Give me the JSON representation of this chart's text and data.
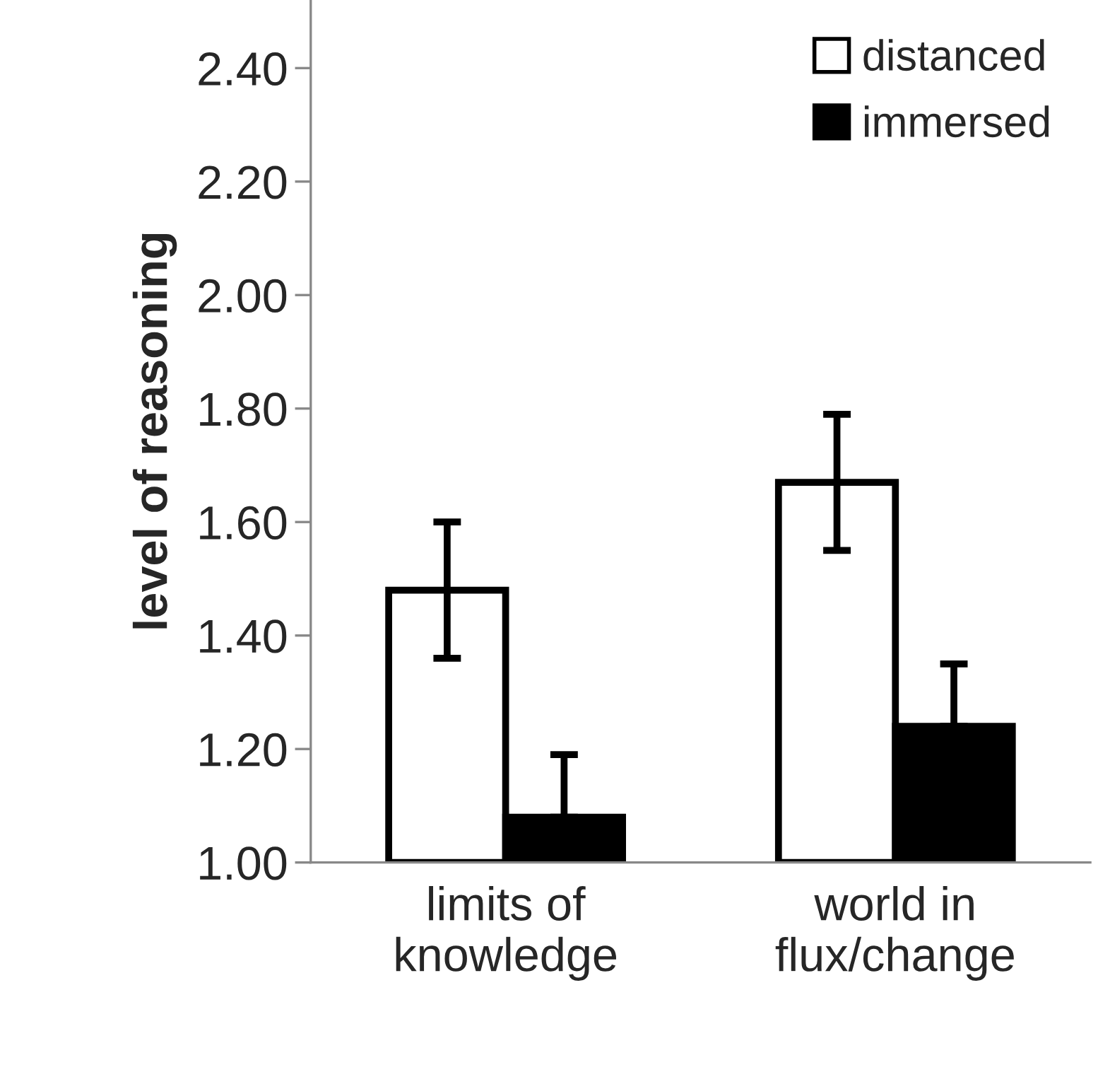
{
  "chart_data": {
    "type": "bar",
    "ylabel": "level of reasoning",
    "categories": [
      "limits of\nknowledge",
      "world in\nflux/change"
    ],
    "series": [
      {
        "name": "distanced",
        "color": "#ffffff",
        "values": [
          1.48,
          1.67
        ],
        "errors": [
          0.12,
          0.12
        ]
      },
      {
        "name": "immersed",
        "color": "#000000",
        "values": [
          1.08,
          1.24
        ],
        "errors": [
          [
            1.08,
            1.19
          ],
          [
            1.24,
            1.35
          ]
        ]
      }
    ],
    "ylim": [
      1.0,
      2.52
    ],
    "yticks": [
      {
        "value": 1.0,
        "label": "1.00"
      },
      {
        "value": 1.2,
        "label": "1.20"
      },
      {
        "value": 1.4,
        "label": "1.40"
      },
      {
        "value": 1.6,
        "label": "1.60"
      },
      {
        "value": 1.8,
        "label": "1.80"
      },
      {
        "value": 2.0,
        "label": "2.00"
      },
      {
        "value": 2.2,
        "label": "2.20"
      },
      {
        "value": 2.4,
        "label": "2.40"
      }
    ],
    "legend": "top right",
    "grid": false
  }
}
